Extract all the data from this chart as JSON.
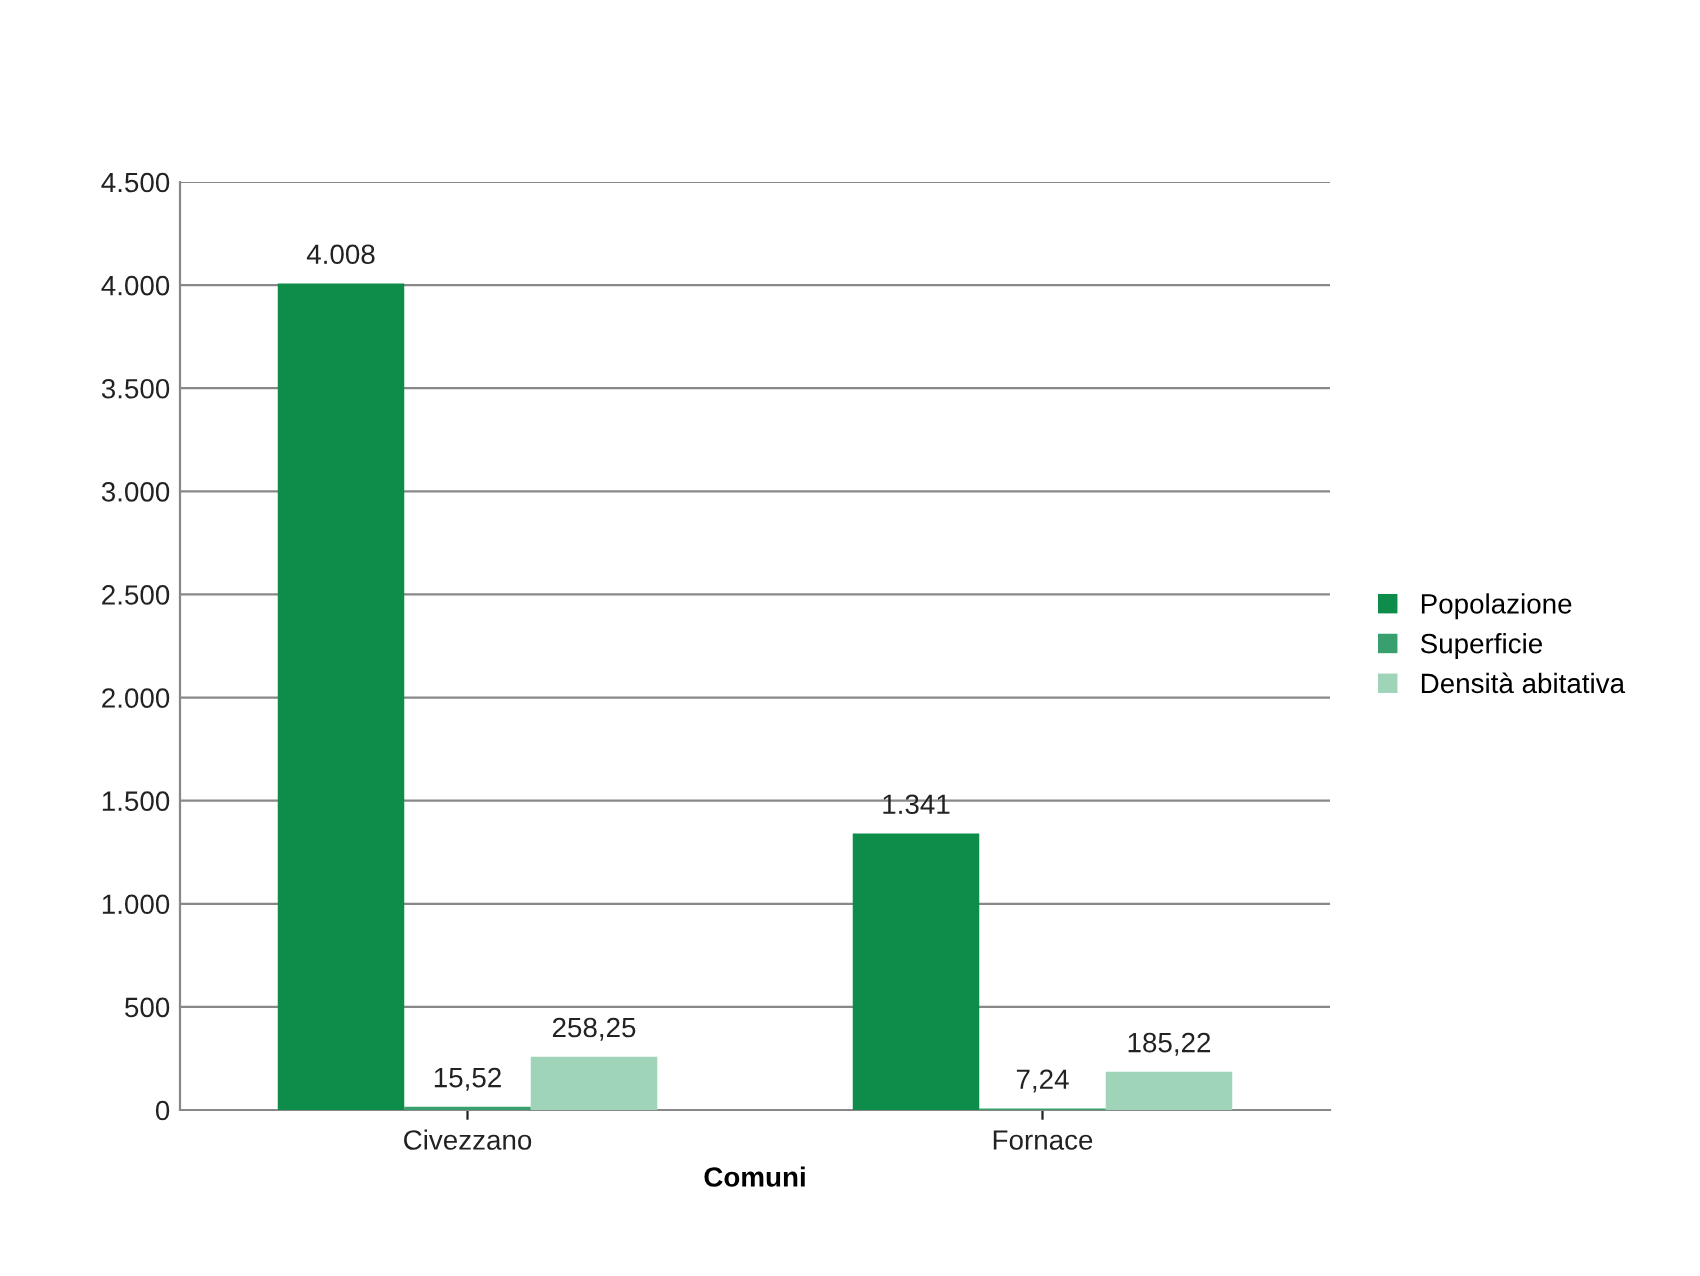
{
  "chart_data": {
    "type": "bar",
    "xlabel": "Comuni",
    "categories": [
      "Civezzano",
      "Fornace"
    ],
    "series": [
      {
        "name": "Popolazione",
        "color": "#0e8c4a",
        "values": [
          4008,
          1341
        ],
        "value_labels": [
          "4.008",
          "1.341"
        ]
      },
      {
        "name": "Superficie",
        "color": "#3a9f6e",
        "values": [
          15.52,
          7.24
        ],
        "value_labels": [
          "15,52",
          "7,24"
        ]
      },
      {
        "name": "Densità abitativa",
        "color": "#9fd4b8",
        "values": [
          258.25,
          185.22
        ],
        "value_labels": [
          "258,25",
          "185,22"
        ]
      }
    ],
    "ylim": [
      0,
      4500
    ],
    "yticks": [
      0,
      500,
      {
        "value": 1000,
        "label": "1.000"
      },
      {
        "value": 1500,
        "label": "1.500"
      },
      {
        "value": 2000,
        "label": "2.000"
      },
      {
        "value": 2500,
        "label": "2.500"
      },
      {
        "value": 3000,
        "label": "3.000"
      },
      {
        "value": 3500,
        "label": "3.500"
      },
      {
        "value": 4000,
        "label": "4.000"
      },
      {
        "value": 4500,
        "label": "4.500"
      }
    ],
    "grid": "y",
    "legend": "right"
  }
}
